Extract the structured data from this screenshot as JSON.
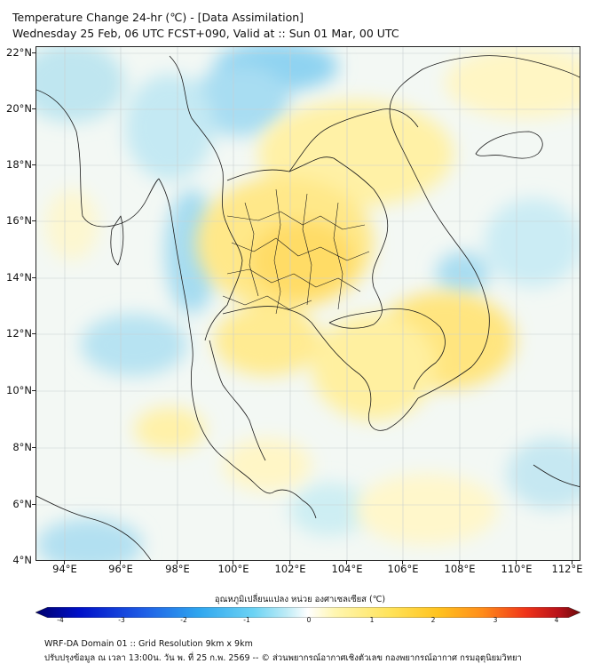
{
  "title": {
    "line1": "Temperature Change 24-hr (℃) - [Data Assimilation]",
    "line2": "Wednesday 25 Feb, 06 UTC FCST+090, Valid at :: Sun 01 Mar, 00 UTC"
  },
  "map": {
    "lat_range": [
      4,
      22.3
    ],
    "lon_range": [
      93,
      112.3
    ],
    "lat_labels": [
      "22°N",
      "20°N",
      "18°N",
      "16°N",
      "14°N",
      "12°N",
      "10°N",
      "8°N",
      "6°N",
      "4°N"
    ],
    "lat_values": [
      22,
      20,
      18,
      16,
      14,
      12,
      10,
      8,
      6,
      4
    ],
    "lon_labels": [
      "94°E",
      "96°E",
      "98°E",
      "100°E",
      "102°E",
      "104°E",
      "106°E",
      "108°E",
      "110°E",
      "112°E"
    ],
    "lon_values": [
      94,
      96,
      98,
      100,
      102,
      104,
      106,
      108,
      110,
      112
    ],
    "gridlines": true
  },
  "colorbar": {
    "title": "อุณหภูมิเปลี่ยนแปลง หน่วย องศาเซลเซียส (℃)",
    "range": [
      -4,
      4
    ],
    "tick_labels": [
      "-4",
      "-3",
      "-2",
      "-1",
      "0",
      "1",
      "2",
      "3",
      "4"
    ],
    "colors": [
      "#00006b",
      "#0010c8",
      "#1f5fe6",
      "#2fa6ef",
      "#6cd3f4",
      "#bdebf6",
      "#ffffff",
      "#fff6b0",
      "#ffe35a",
      "#ffc21e",
      "#ff8c1a",
      "#f0341a",
      "#b8121a",
      "#6b0a0a"
    ]
  },
  "footer": {
    "line1": "WRF-DA Domain 01 :: Grid Resolution 9km x 9km",
    "line2": "ปรับปรุงข้อมูล ณ เวลา 13:00น. วัน พ. ที่ 25 ก.พ. 2569 -- © ส่วนพยากรณ์อากาศเชิงตัวเลข กองพยากรณ์อากาศ กรมอุตุนิยมวิทยา"
  }
}
